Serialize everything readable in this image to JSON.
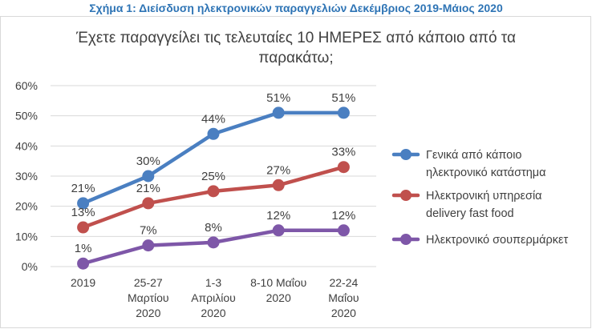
{
  "caption": "Σχήμα 1: Διείσδυση ηλεκτρονικών παραγγελιών Δεκέμβριος 2019-Μάιος 2020",
  "chart_data": {
    "type": "line",
    "title_lines": [
      "Έχετε παραγγείλει τις τελευταίες 10 ΗΜΕΡΕΣ από κάποιο από τα",
      "παρακάτω;"
    ],
    "categories": [
      [
        "2019"
      ],
      [
        "25-27",
        "Μαρτίου",
        "2020"
      ],
      [
        "1-3",
        "Απριλίου",
        "2020"
      ],
      [
        "8-10 Μαΐου",
        "2020"
      ],
      [
        "22-24",
        "Μαΐου",
        "2020"
      ]
    ],
    "ylim": [
      0,
      60
    ],
    "yticks": [
      "0%",
      "10%",
      "20%",
      "30%",
      "40%",
      "50%",
      "60%"
    ],
    "grid": true,
    "legend_position": "right",
    "series": [
      {
        "name_lines": [
          "Γενικά από κάποιο",
          "ηλεκτρονικό κατάστημα"
        ],
        "color": "#4a7fc1",
        "values": [
          21,
          30,
          44,
          51,
          51
        ],
        "labels": [
          "21%",
          "30%",
          "44%",
          "51%",
          "51%"
        ]
      },
      {
        "name_lines": [
          "Ηλεκτρονική υπηρεσία",
          "delivery fast food"
        ],
        "color": "#c0504d",
        "values": [
          13,
          21,
          25,
          27,
          33
        ],
        "labels": [
          "13%",
          "21%",
          "25%",
          "27%",
          "33%"
        ]
      },
      {
        "name_lines": [
          "Ηλεκτρονικό σουπερμάρκετ"
        ],
        "color": "#7e57a8",
        "values": [
          1,
          7,
          8,
          12,
          12
        ],
        "labels": [
          "1%",
          "7%",
          "8%",
          "12%",
          "12%"
        ]
      }
    ]
  }
}
